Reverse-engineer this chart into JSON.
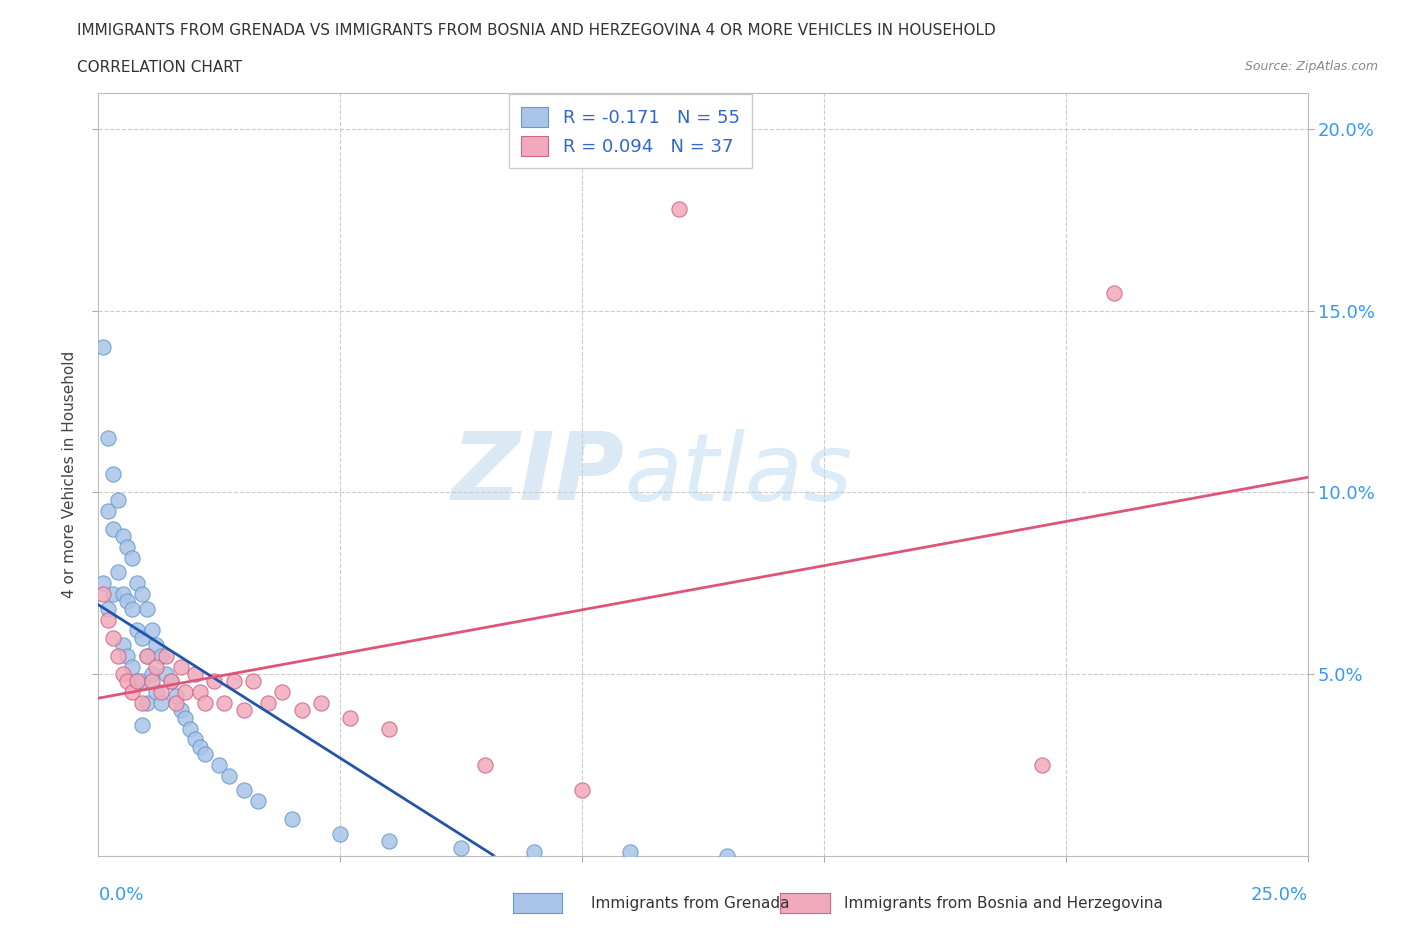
{
  "title_line1": "IMMIGRANTS FROM GRENADA VS IMMIGRANTS FROM BOSNIA AND HERZEGOVINA 4 OR MORE VEHICLES IN HOUSEHOLD",
  "title_line2": "CORRELATION CHART",
  "source_text": "Source: ZipAtlas.com",
  "ylabel": "4 or more Vehicles in Household",
  "watermark_ZIP": "ZIP",
  "watermark_atlas": "atlas",
  "legend": {
    "grenada_label": "Immigrants from Grenada",
    "bosnia_label": "Immigrants from Bosnia and Herzegovina",
    "grenada_text": "R = -0.171   N = 55",
    "bosnia_text": "R = 0.094   N = 37"
  },
  "grenada_color": "#aac4e8",
  "grenada_edge": "#6699cc",
  "bosnia_color": "#f0aabb",
  "bosnia_edge": "#cc6688",
  "grenada_line_color": "#2255aa",
  "bosnia_line_color": "#dd5577",
  "dashed_line_color": "#aaaaaa",
  "background_color": "#ffffff",
  "right_tick_color": "#3399ff",
  "xlim": [
    0.0,
    0.25
  ],
  "ylim": [
    0.0,
    0.21
  ],
  "xtick_positions": [
    0.05,
    0.1,
    0.15,
    0.2,
    0.25
  ],
  "ytick_positions": [
    0.05,
    0.1,
    0.15,
    0.2
  ],
  "grenada_x": [
    0.001,
    0.001,
    0.002,
    0.002,
    0.002,
    0.003,
    0.003,
    0.003,
    0.004,
    0.004,
    0.005,
    0.005,
    0.005,
    0.006,
    0.006,
    0.006,
    0.007,
    0.007,
    0.007,
    0.008,
    0.008,
    0.008,
    0.009,
    0.009,
    0.009,
    0.009,
    0.01,
    0.01,
    0.01,
    0.011,
    0.011,
    0.012,
    0.012,
    0.013,
    0.013,
    0.014,
    0.015,
    0.016,
    0.017,
    0.018,
    0.019,
    0.02,
    0.021,
    0.022,
    0.025,
    0.027,
    0.03,
    0.033,
    0.04,
    0.05,
    0.06,
    0.075,
    0.09,
    0.11,
    0.13
  ],
  "grenada_y": [
    0.075,
    0.14,
    0.115,
    0.095,
    0.068,
    0.105,
    0.09,
    0.072,
    0.098,
    0.078,
    0.088,
    0.072,
    0.058,
    0.085,
    0.07,
    0.055,
    0.082,
    0.068,
    0.052,
    0.075,
    0.062,
    0.048,
    0.072,
    0.06,
    0.048,
    0.036,
    0.068,
    0.055,
    0.042,
    0.062,
    0.05,
    0.058,
    0.045,
    0.055,
    0.042,
    0.05,
    0.048,
    0.044,
    0.04,
    0.038,
    0.035,
    0.032,
    0.03,
    0.028,
    0.025,
    0.022,
    0.018,
    0.015,
    0.01,
    0.006,
    0.004,
    0.002,
    0.001,
    0.001,
    0.0
  ],
  "bosnia_x": [
    0.001,
    0.002,
    0.003,
    0.004,
    0.005,
    0.006,
    0.007,
    0.008,
    0.009,
    0.01,
    0.011,
    0.012,
    0.013,
    0.014,
    0.015,
    0.016,
    0.017,
    0.018,
    0.02,
    0.021,
    0.022,
    0.024,
    0.026,
    0.028,
    0.03,
    0.032,
    0.035,
    0.038,
    0.042,
    0.046,
    0.052,
    0.06,
    0.08,
    0.1,
    0.12,
    0.195,
    0.21
  ],
  "bosnia_y": [
    0.072,
    0.065,
    0.06,
    0.055,
    0.05,
    0.048,
    0.045,
    0.048,
    0.042,
    0.055,
    0.048,
    0.052,
    0.045,
    0.055,
    0.048,
    0.042,
    0.052,
    0.045,
    0.05,
    0.045,
    0.042,
    0.048,
    0.042,
    0.048,
    0.04,
    0.048,
    0.042,
    0.045,
    0.04,
    0.042,
    0.038,
    0.035,
    0.025,
    0.018,
    0.178,
    0.025,
    0.155
  ]
}
